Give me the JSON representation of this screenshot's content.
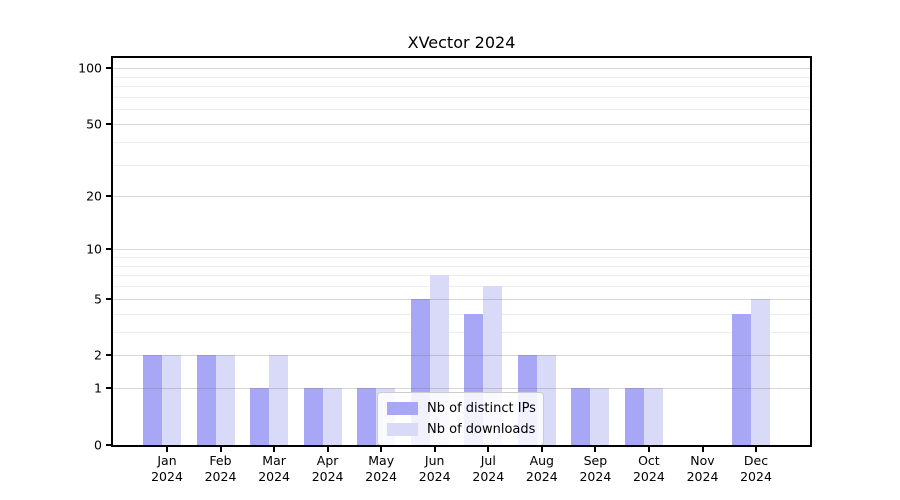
{
  "chart_data": {
    "type": "bar",
    "title": "XVector 2024",
    "categories": [
      "Jan 2024",
      "Feb 2024",
      "Mar 2024",
      "Apr 2024",
      "May 2024",
      "Jun 2024",
      "Jul 2024",
      "Aug 2024",
      "Sep 2024",
      "Oct 2024",
      "Nov 2024",
      "Dec 2024"
    ],
    "series": [
      {
        "name": "Nb of distinct IPs",
        "color": "#a7a7f5",
        "values": [
          2,
          2,
          1,
          1,
          1,
          5,
          4,
          2,
          1,
          1,
          0,
          4
        ]
      },
      {
        "name": "Nb of downloads",
        "color": "#d9d9f8",
        "values": [
          2,
          2,
          2,
          1,
          1,
          7,
          6,
          2,
          1,
          1,
          0,
          5
        ]
      }
    ],
    "xlabel": "",
    "ylabel": "",
    "yscale": "log1p",
    "ylim": [
      0,
      113
    ],
    "yticks": [
      0,
      1,
      2,
      5,
      10,
      20,
      50,
      100
    ],
    "minor_gridlines": [
      3,
      4,
      6,
      7,
      8,
      9,
      30,
      40,
      60,
      70,
      80,
      90
    ],
    "grid": {
      "major_color": "#c9c9c9",
      "minor_color": "#ededed"
    },
    "legend": {
      "position": "bottom-center",
      "entries": [
        "Nb of distinct IPs",
        "Nb of downloads"
      ]
    }
  }
}
